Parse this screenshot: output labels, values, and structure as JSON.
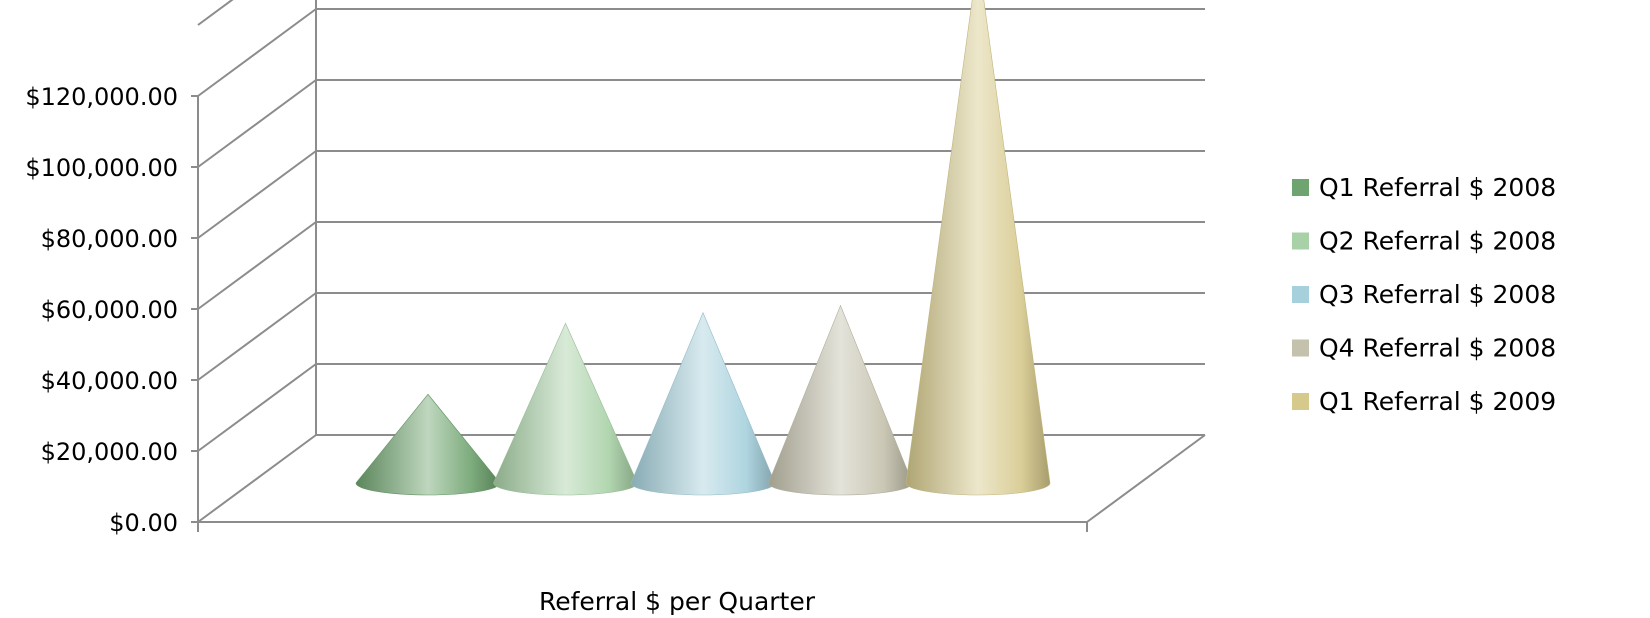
{
  "chart_data": {
    "type": "bar",
    "style": "3d-cone",
    "xlabel": "Referral $ per Quarter",
    "ylabel": "",
    "ylim": [
      0,
      140000
    ],
    "yticks": [
      0,
      20000,
      40000,
      60000,
      80000,
      100000,
      120000
    ],
    "ytick_labels": [
      "$0.00",
      "$20,000.00",
      "$40,000.00",
      "$60,000.00",
      "$80,000.00",
      "$100,000.00",
      "$120,000.00"
    ],
    "grid": true,
    "legend_position": "right",
    "series": [
      {
        "name": "Q1 Referral $ 2008",
        "values": [
          25000
        ],
        "color": "#6fa36f"
      },
      {
        "name": "Q2 Referral $ 2008",
        "values": [
          45000
        ],
        "color": "#a9d1a7"
      },
      {
        "name": "Q3 Referral $ 2008",
        "values": [
          48000
        ],
        "color": "#a6d0dc"
      },
      {
        "name": "Q4 Referral $ 2008",
        "values": [
          50000
        ],
        "color": "#c4c1ad"
      },
      {
        "name": "Q1 Referral $ 2009",
        "values": [
          148000
        ],
        "color": "#d6c98c"
      }
    ]
  }
}
